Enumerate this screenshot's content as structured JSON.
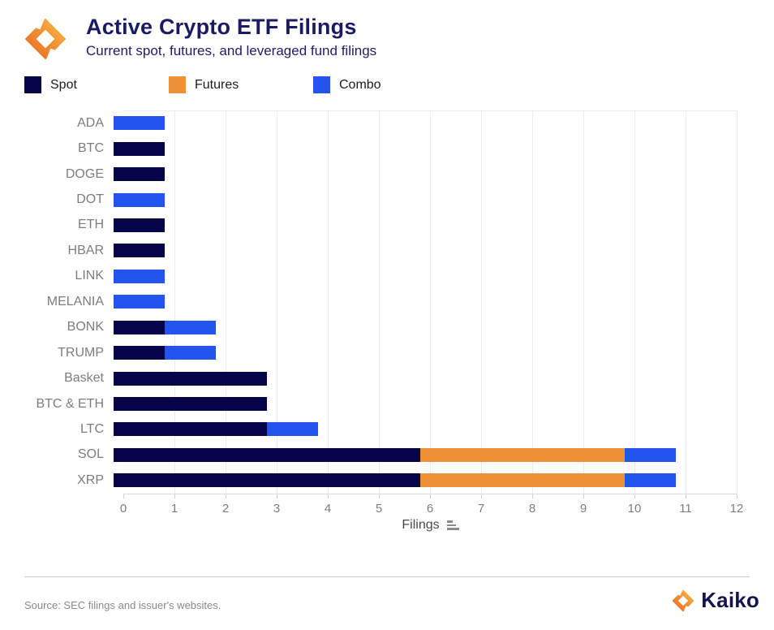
{
  "header": {
    "title": "Active Crypto ETF Filings",
    "subtitle": "Current spot, futures, and leveraged fund filings"
  },
  "legend": [
    {
      "label": "Spot",
      "color": "#050449"
    },
    {
      "label": "Futures",
      "color": "#ee9138"
    },
    {
      "label": "Combo",
      "color": "#2454ee"
    }
  ],
  "chart_data": {
    "type": "bar",
    "orientation": "horizontal",
    "stacked": true,
    "title": "Active Crypto ETF Filings",
    "subtitle": "Current spot, futures, and leveraged fund filings",
    "categories": [
      "ADA",
      "BTC",
      "DOGE",
      "DOT",
      "ETH",
      "HBAR",
      "LINK",
      "MELANIA",
      "BONK",
      "TRUMP",
      "Basket",
      "BTC & ETH",
      "LTC",
      "SOL",
      "XRP"
    ],
    "series": [
      {
        "name": "Spot",
        "color": "#050449",
        "values": [
          0,
          1,
          1,
          0,
          1,
          1,
          0,
          0,
          1,
          1,
          3,
          3,
          3,
          6,
          6
        ]
      },
      {
        "name": "Futures",
        "color": "#ee9138",
        "values": [
          0,
          0,
          0,
          0,
          0,
          0,
          0,
          0,
          0,
          0,
          0,
          0,
          0,
          4,
          4
        ]
      },
      {
        "name": "Combo",
        "color": "#2454ee",
        "values": [
          1,
          0,
          0,
          1,
          0,
          0,
          1,
          1,
          1,
          1,
          0,
          0,
          1,
          1,
          1
        ]
      }
    ],
    "totals": {
      "ADA": 1,
      "BTC": 1,
      "DOGE": 1,
      "DOT": 1,
      "ETH": 1,
      "HBAR": 1,
      "LINK": 1,
      "MELANIA": 1,
      "BONK": 2,
      "TRUMP": 2,
      "Basket": 3,
      "BTC & ETH": 3,
      "LTC": 4,
      "SOL": 11,
      "XRP": 11
    },
    "xlabel": "Filings",
    "xlim": [
      0,
      12
    ],
    "xticks": [
      0,
      1,
      2,
      3,
      4,
      5,
      6,
      7,
      8,
      9,
      10,
      11,
      12
    ],
    "grid": true,
    "legend_position": "top"
  },
  "footer": {
    "source": "Source: SEC filings and issuer's websites.",
    "brand": "Kaiko"
  }
}
